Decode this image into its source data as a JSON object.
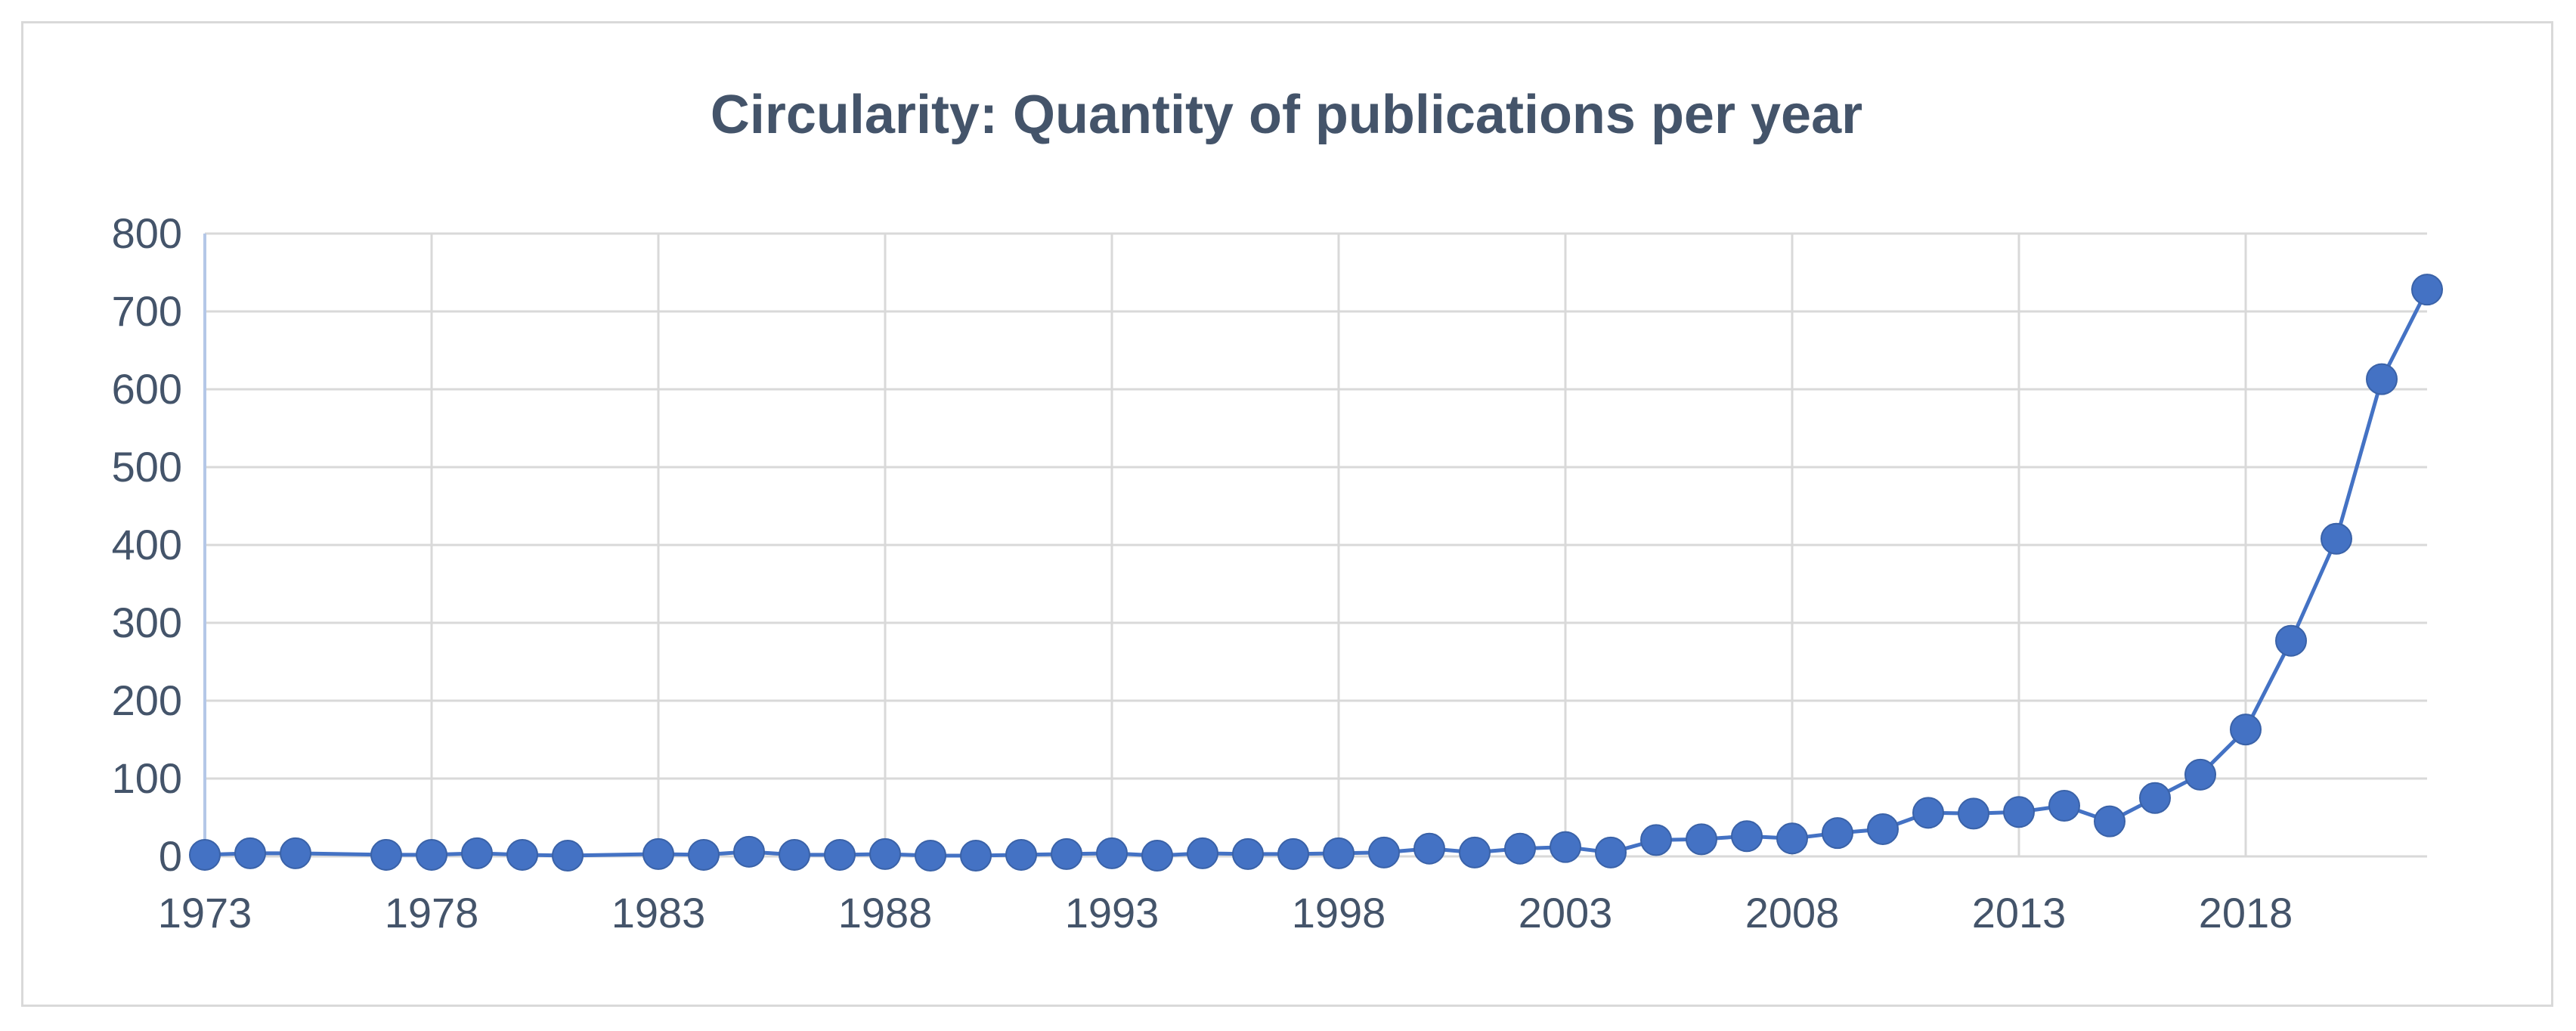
{
  "chart_data": {
    "type": "line",
    "title": "Circularity: Quantity of publications per year",
    "xlabel": "",
    "ylabel": "",
    "ylim": [
      0,
      800
    ],
    "xlim": [
      1973,
      2022
    ],
    "y_ticks": [
      "0",
      "100",
      "200",
      "300",
      "400",
      "500",
      "600",
      "700",
      "800"
    ],
    "x_ticks": [
      "1973",
      "1978",
      "1983",
      "1988",
      "1993",
      "1998",
      "2003",
      "2008",
      "2013",
      "2018"
    ],
    "grid": true,
    "legend": "none",
    "series": [
      {
        "color": "#4472c4",
        "marker": "circle",
        "points": [
          {
            "x": 1973,
            "y": 2
          },
          {
            "x": 1974,
            "y": 4
          },
          {
            "x": 1975,
            "y": 4
          },
          {
            "x": 1977,
            "y": 2
          },
          {
            "x": 1978,
            "y": 2
          },
          {
            "x": 1979,
            "y": 4
          },
          {
            "x": 1980,
            "y": 2
          },
          {
            "x": 1981,
            "y": 1
          },
          {
            "x": 1983,
            "y": 3
          },
          {
            "x": 1984,
            "y": 2
          },
          {
            "x": 1985,
            "y": 6
          },
          {
            "x": 1986,
            "y": 2
          },
          {
            "x": 1987,
            "y": 2
          },
          {
            "x": 1988,
            "y": 3
          },
          {
            "x": 1989,
            "y": 1
          },
          {
            "x": 1990,
            "y": 1
          },
          {
            "x": 1991,
            "y": 2
          },
          {
            "x": 1992,
            "y": 3
          },
          {
            "x": 1993,
            "y": 4
          },
          {
            "x": 1994,
            "y": 1
          },
          {
            "x": 1995,
            "y": 4
          },
          {
            "x": 1996,
            "y": 3
          },
          {
            "x": 1997,
            "y": 3
          },
          {
            "x": 1998,
            "y": 4
          },
          {
            "x": 1999,
            "y": 5
          },
          {
            "x": 2000,
            "y": 10
          },
          {
            "x": 2001,
            "y": 5
          },
          {
            "x": 2002,
            "y": 10
          },
          {
            "x": 2003,
            "y": 12
          },
          {
            "x": 2004,
            "y": 5
          },
          {
            "x": 2005,
            "y": 21
          },
          {
            "x": 2006,
            "y": 22
          },
          {
            "x": 2007,
            "y": 26
          },
          {
            "x": 2008,
            "y": 23
          },
          {
            "x": 2009,
            "y": 30
          },
          {
            "x": 2010,
            "y": 35
          },
          {
            "x": 2011,
            "y": 56
          },
          {
            "x": 2012,
            "y": 55
          },
          {
            "x": 2013,
            "y": 57
          },
          {
            "x": 2014,
            "y": 65
          },
          {
            "x": 2015,
            "y": 45
          },
          {
            "x": 2016,
            "y": 75
          },
          {
            "x": 2017,
            "y": 105
          },
          {
            "x": 2018,
            "y": 163
          },
          {
            "x": 2019,
            "y": 277
          },
          {
            "x": 2020,
            "y": 408
          },
          {
            "x": 2021,
            "y": 613
          },
          {
            "x": 2022,
            "y": 728
          }
        ]
      }
    ]
  }
}
